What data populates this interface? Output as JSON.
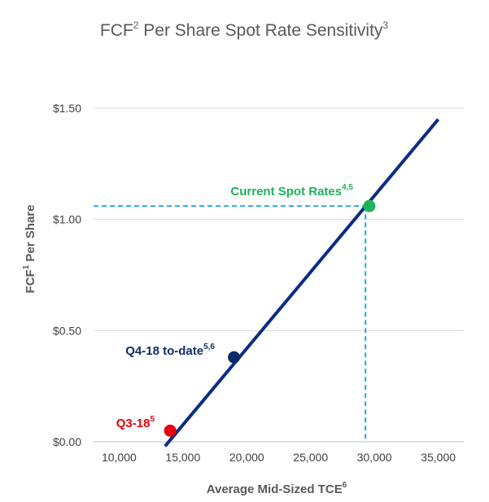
{
  "chart_data": {
    "type": "line",
    "title": "FCF",
    "title_sup": "2",
    "title_rest": " Per Share Spot Rate Sensitivity",
    "title_sup2": "3",
    "xlabel": "Average Mid-Sized TCE",
    "xlabel_sup": "6",
    "ylabel": "FCF",
    "ylabel_sup": "1",
    "ylabel_rest": " Per Share",
    "xlim": [
      8000,
      37000
    ],
    "ylim": [
      0,
      1.5
    ],
    "x_ticks": [
      10000,
      15000,
      20000,
      25000,
      30000,
      35000
    ],
    "x_tick_labels": [
      "10,000",
      "15,000",
      "20,000",
      "25,000",
      "30,000",
      "35,000"
    ],
    "y_ticks": [
      0,
      0.5,
      1.0,
      1.5
    ],
    "y_tick_labels": [
      "$0.00",
      "$0.50",
      "$1.00",
      "$1.50"
    ],
    "grid": true,
    "series": [
      {
        "x": [
          13600,
          35000
        ],
        "y": [
          -0.02,
          1.45
        ],
        "color": "#0c2c84"
      }
    ],
    "points": [
      {
        "label": "Q3-18",
        "sup": "5",
        "x": 14000,
        "y": 0.05,
        "color": "#e8000b"
      },
      {
        "label": "Q4-18 to-date",
        "sup": "5,6",
        "x": 19000,
        "y": 0.38,
        "color": "#0c2c67"
      },
      {
        "label": "Current Spot Rates",
        "sup": "4,5",
        "x": 29600,
        "y": 1.06,
        "color": "#1fb25a"
      }
    ],
    "reference_lines": {
      "y": 1.06,
      "x": 29300,
      "color": "#23a8e0"
    }
  }
}
